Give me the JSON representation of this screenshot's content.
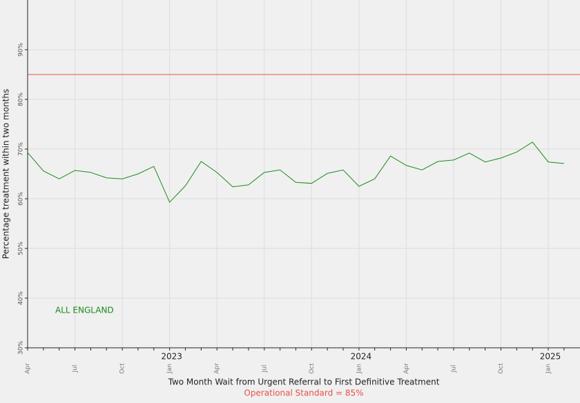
{
  "chart_data": {
    "type": "line",
    "x_label": "Two Month Wait from Urgent Referral to First Definitive Treatment",
    "y_label": "Percentage treatment within two months",
    "categories": [
      "Apr",
      null,
      null,
      "Jul",
      null,
      null,
      "Oct",
      null,
      null,
      "Jan",
      null,
      null,
      "Apr",
      null,
      null,
      "Jul",
      null,
      null,
      "Oct",
      null,
      null,
      "Jan",
      null,
      null,
      "Apr",
      null,
      null,
      "Jul",
      null,
      null,
      "Oct",
      null,
      null,
      "Jan",
      null
    ],
    "years": [
      2023,
      2024,
      2025
    ],
    "series": [
      {
        "name": "ALL ENGLAND",
        "color": "#1a8a1a",
        "values": [
          69.3,
          65.6,
          64.0,
          65.7,
          65.3,
          64.2,
          64.0,
          65.0,
          66.5,
          59.3,
          62.6,
          67.5,
          65.3,
          62.4,
          62.8,
          65.3,
          65.8,
          63.3,
          63.1,
          65.1,
          65.8,
          62.5,
          64.0,
          68.6,
          66.7,
          65.8,
          67.5,
          67.8,
          69.2,
          67.4,
          68.2,
          69.4,
          71.4,
          67.4,
          67.1
        ]
      }
    ],
    "reference_line": {
      "value": 85,
      "color": "#e8504a",
      "label": "Operational Standard = 85%"
    },
    "ylim": [
      30,
      100
    ],
    "yticks": [
      {
        "value": 30,
        "label": "30%"
      },
      {
        "value": 40,
        "label": "40%"
      },
      {
        "value": 50,
        "label": "50%"
      },
      {
        "value": 60,
        "label": "60%"
      },
      {
        "value": 70,
        "label": "70%"
      },
      {
        "value": 80,
        "label": "80%"
      },
      {
        "value": 90,
        "label": "90%"
      }
    ],
    "grid": true
  }
}
